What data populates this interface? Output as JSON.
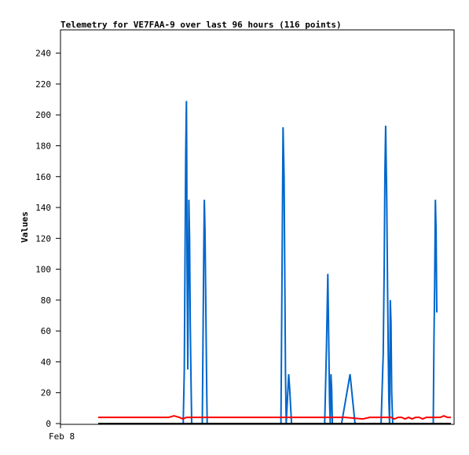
{
  "chart_data": {
    "type": "line",
    "title": "Telemetry for VE7FAA-9 over last 96 hours (116 points)",
    "ylabel": "Values",
    "xlabel": "",
    "x_tick_labels": [
      "Feb 8"
    ],
    "ylim": [
      0,
      255
    ],
    "y_ticks": [
      0,
      20,
      40,
      60,
      80,
      100,
      120,
      140,
      160,
      180,
      200,
      220,
      240
    ],
    "xlim": [
      0,
      100
    ],
    "grid": false,
    "legend": "none",
    "colors": {
      "series_blue": "#0066cc",
      "series_red": "#ff0000",
      "series_black": "#000000"
    },
    "series": [
      {
        "color": "#0066cc",
        "x": [
          24.1,
          24.4,
          24.6,
          24.8,
          25.0,
          25.1,
          25.2,
          25.4,
          25.5,
          25.7,
          25.9,
          26.1,
          26.3,
          26.5,
          26.7,
          27.0,
          27.1,
          29.5,
          29.9,
          30.1,
          30.3,
          30.5,
          30.7,
          30.9,
          31.5,
          51.8,
          52.1,
          52.4,
          52.7,
          52.9,
          53.1,
          53.3,
          54.0,
          54.3,
          54.8,
          64.2,
          64.7,
          65.1,
          65.4,
          65.6,
          65.8,
          66.0,
          66.2,
          66.4,
          66.7,
          69.0,
          71.4,
          72.8,
          80.2,
          80.8,
          81.1,
          81.3,
          81.5,
          81.8,
          82.0,
          82.2,
          82.4,
          82.6,
          82.8,
          83.0,
          83.2,
          83.5,
          95.0,
          95.2,
          95.4,
          95.6,
          95.8,
          96.0
        ],
        "y": [
          0,
          35,
          105,
          174,
          209,
          174,
          105,
          35,
          70,
          145,
          120,
          64,
          30,
          0,
          0,
          0,
          0,
          0,
          107,
          145,
          123,
          80,
          37,
          0,
          0,
          0,
          90,
          192,
          160,
          97,
          33,
          0,
          32,
          22,
          0,
          0,
          48,
          97,
          48,
          14,
          0,
          32,
          22,
          0,
          0,
          0,
          32,
          0,
          0,
          45,
          103,
          163,
          193,
          145,
          95,
          50,
          15,
          0,
          80,
          66,
          20,
          0,
          0,
          54,
          90,
          145,
          125,
          72
        ]
      },
      {
        "color": "#ff0000",
        "x": [
          0,
          13,
          16,
          20,
          21.5,
          23,
          24,
          25,
          28,
          32,
          40,
          50,
          60,
          70,
          75,
          77,
          79,
          81,
          83,
          84,
          85,
          86,
          87,
          88,
          89,
          90,
          91,
          92,
          93,
          94,
          95,
          96,
          97,
          98,
          99,
          100
        ],
        "y": [
          4,
          4,
          4,
          4,
          5,
          4,
          3,
          4,
          4,
          4,
          4,
          4,
          4,
          4,
          3,
          4,
          4,
          4,
          4,
          3,
          4,
          4,
          3,
          4,
          3,
          4,
          4,
          3,
          4,
          4,
          4,
          4,
          4,
          5,
          4,
          4
        ]
      },
      {
        "color": "#000000",
        "x": [
          0,
          100
        ],
        "y": [
          0,
          0
        ]
      }
    ]
  }
}
